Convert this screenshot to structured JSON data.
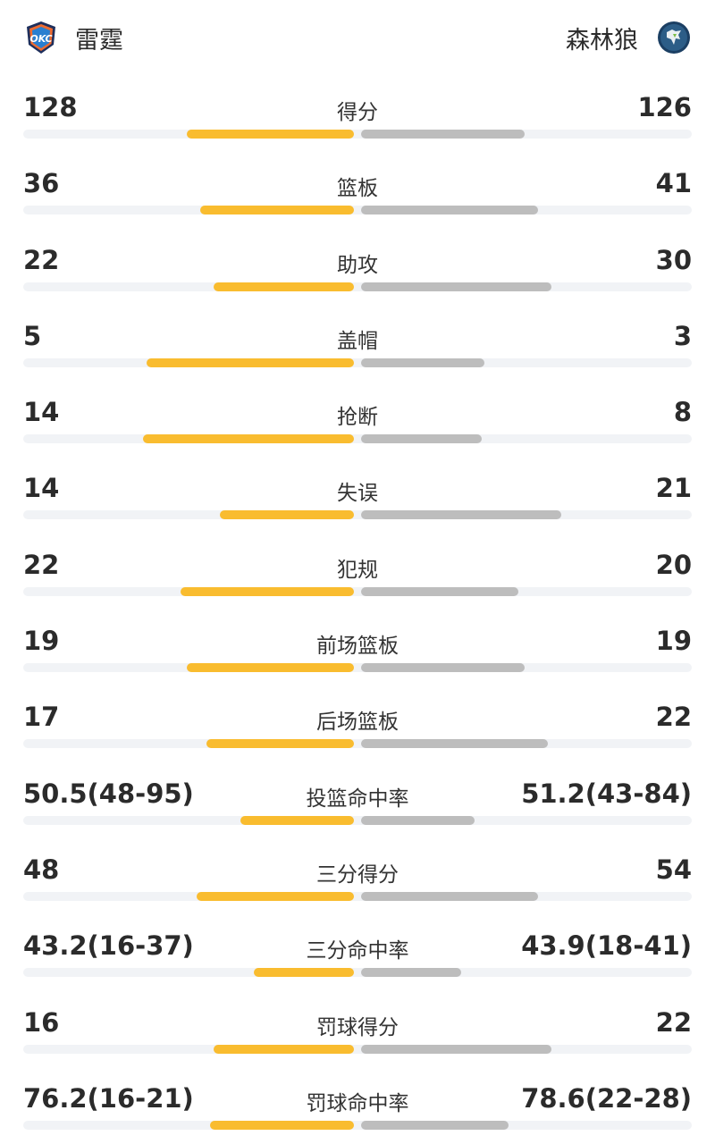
{
  "header": {
    "home": {
      "name": "雷霆",
      "logo_icon": "okc-thunder-logo",
      "logo_text": "OKC",
      "color": "#f9bc2f"
    },
    "away": {
      "name": "森林狼",
      "logo_icon": "timberwolves-logo",
      "color": "#bdbdbd"
    }
  },
  "stats": [
    {
      "label": "得分",
      "home": "128",
      "away": "126",
      "home_share": 0.5,
      "away_share": 0.49
    },
    {
      "label": "篮板",
      "home": "36",
      "away": "41",
      "home_share": 0.46,
      "away_share": 0.53
    },
    {
      "label": "助攻",
      "home": "22",
      "away": "30",
      "home_share": 0.42,
      "away_share": 0.57
    },
    {
      "label": "盖帽",
      "home": "5",
      "away": "3",
      "home_share": 0.62,
      "away_share": 0.37
    },
    {
      "label": "抢断",
      "home": "14",
      "away": "8",
      "home_share": 0.63,
      "away_share": 0.36
    },
    {
      "label": "失误",
      "home": "14",
      "away": "21",
      "home_share": 0.4,
      "away_share": 0.6
    },
    {
      "label": "犯规",
      "home": "22",
      "away": "20",
      "home_share": 0.52,
      "away_share": 0.47
    },
    {
      "label": "前场篮板",
      "home": "19",
      "away": "19",
      "home_share": 0.5,
      "away_share": 0.49
    },
    {
      "label": "后场篮板",
      "home": "17",
      "away": "22",
      "home_share": 0.44,
      "away_share": 0.56
    },
    {
      "label": "投篮命中率",
      "home": "50.5(48-95)",
      "away": "51.2(43-84)",
      "home_share": 0.34,
      "away_share": 0.34
    },
    {
      "label": "三分得分",
      "home": "48",
      "away": "54",
      "home_share": 0.47,
      "away_share": 0.53
    },
    {
      "label": "三分命中率",
      "home": "43.2(16-37)",
      "away": "43.9(18-41)",
      "home_share": 0.3,
      "away_share": 0.3
    },
    {
      "label": "罚球得分",
      "home": "16",
      "away": "22",
      "home_share": 0.42,
      "away_share": 0.57
    },
    {
      "label": "罚球命中率",
      "home": "76.2(16-21)",
      "away": "78.6(22-28)",
      "home_share": 0.43,
      "away_share": 0.44
    }
  ]
}
